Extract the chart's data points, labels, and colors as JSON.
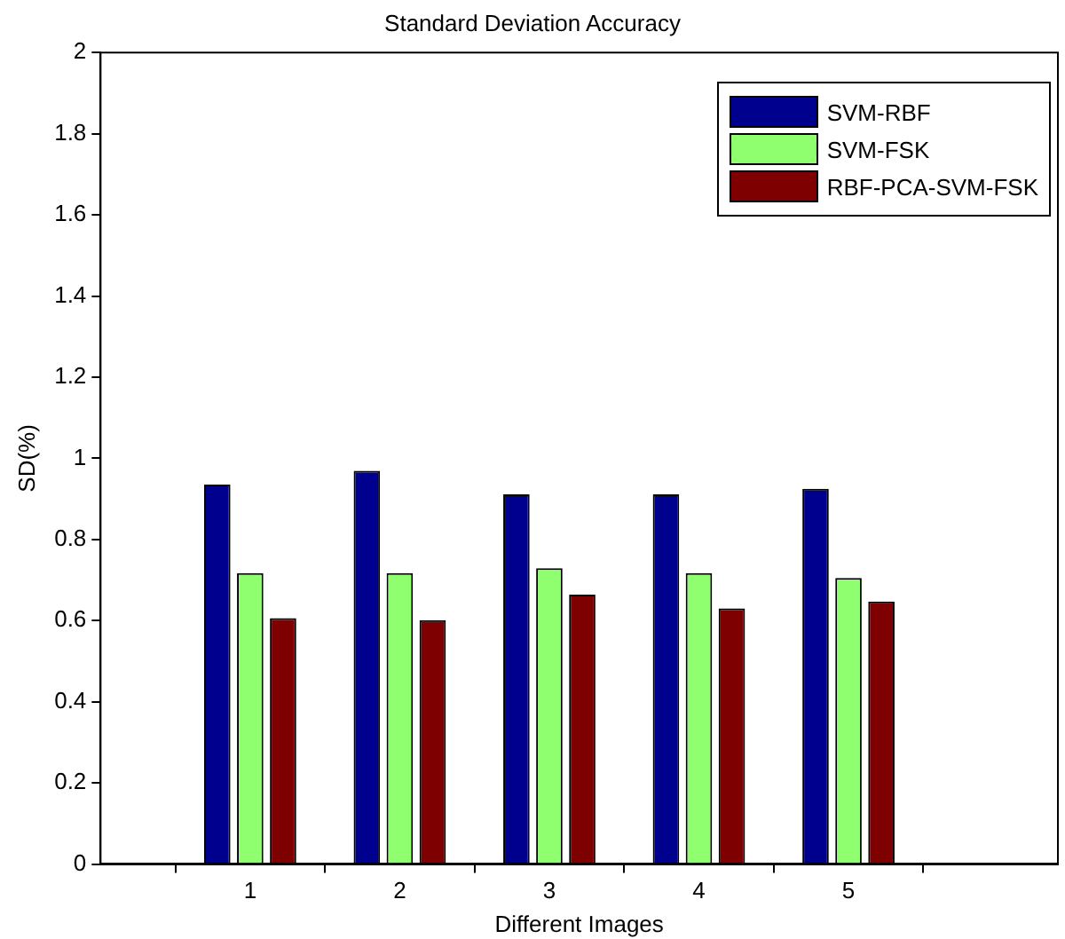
{
  "chart_data": {
    "type": "bar",
    "title": "Standard Deviation Accuracy",
    "xlabel": "Different Images",
    "ylabel": "SD(%)",
    "x": [
      1,
      2,
      3,
      4,
      5
    ],
    "xlim": [
      0,
      6.4
    ],
    "xticks": [
      1,
      2,
      3,
      4,
      5
    ],
    "ylim": [
      0,
      2
    ],
    "yticks": [
      0,
      0.2,
      0.4,
      0.6,
      0.8,
      1,
      1.2,
      1.4,
      1.6,
      1.8,
      2
    ],
    "series": [
      {
        "name": "SVM-RBF",
        "color": "#00008f",
        "values": [
          0.935,
          0.969,
          0.911,
          0.911,
          0.925
        ]
      },
      {
        "name": "SVM-FSK",
        "color": "#8fff6f",
        "values": [
          0.717,
          0.717,
          0.729,
          0.717,
          0.705
        ]
      },
      {
        "name": "RBF-PCA-SVM-FSK",
        "color": "#7f0000",
        "values": [
          0.606,
          0.601,
          0.664,
          0.63,
          0.647
        ]
      }
    ],
    "grid": false,
    "legend": "top right"
  }
}
